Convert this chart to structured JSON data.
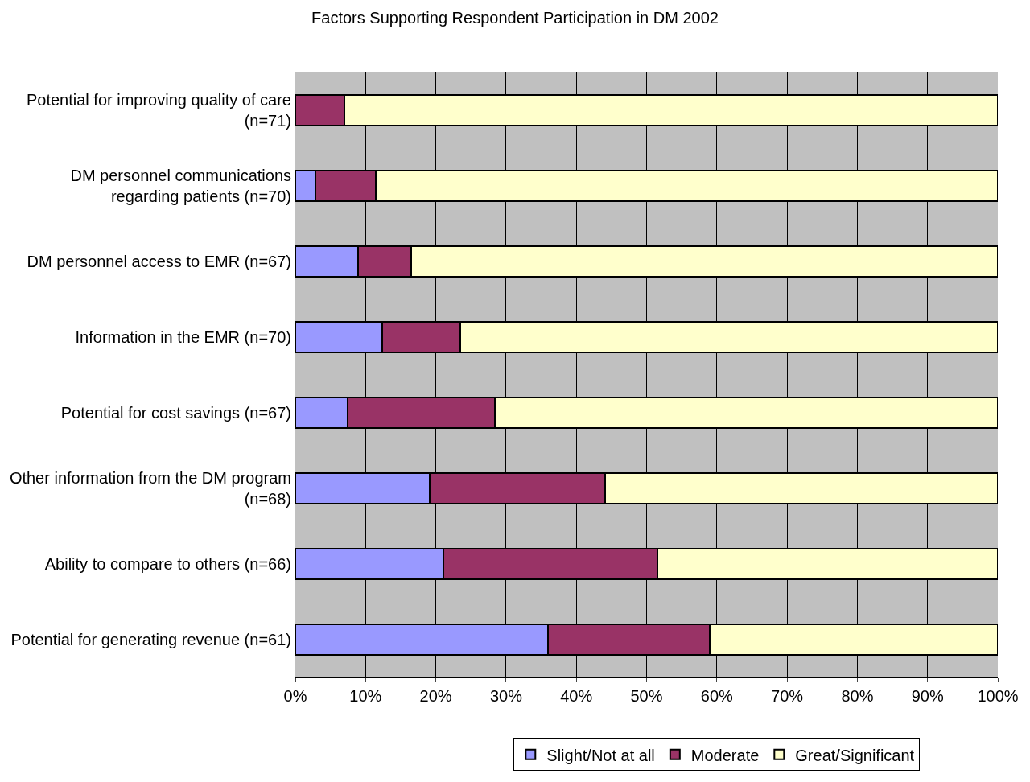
{
  "chart_data": {
    "type": "bar",
    "orientation": "horizontal",
    "stacked": true,
    "title": "Factors Supporting Respondent Participation in DM 2002",
    "categories": [
      "Potential for improving quality of care\n(n=71)",
      "DM personnel communications\nregarding patients (n=70)",
      "DM personnel access to EMR (n=67)",
      "Information in the EMR (n=70)",
      "Potential for cost savings (n=67)",
      "Other information from the DM program\n(n=68)",
      "Ability to compare to others (n=66)",
      "Potential for generating revenue (n=61)"
    ],
    "series": [
      {
        "name": "Slight/Not at all",
        "color": "#9999ff",
        "values": [
          0,
          2.9,
          8.9,
          12.4,
          7.5,
          19.1,
          21.1,
          36.0
        ]
      },
      {
        "name": "Moderate",
        "color": "#993366",
        "values": [
          7.0,
          8.6,
          7.6,
          11.1,
          20.9,
          25.0,
          30.4,
          23.0
        ]
      },
      {
        "name": "Great/Significant",
        "color": "#ffffcc",
        "values": [
          93.0,
          88.5,
          83.5,
          76.5,
          71.6,
          55.9,
          48.5,
          41.0
        ]
      }
    ],
    "xlim": [
      0,
      100
    ],
    "xticks": [
      {
        "value": 0,
        "label": "0%"
      },
      {
        "value": 10,
        "label": "10%"
      },
      {
        "value": 20,
        "label": "20%"
      },
      {
        "value": 30,
        "label": "30%"
      },
      {
        "value": 40,
        "label": "40%"
      },
      {
        "value": 50,
        "label": "50%"
      },
      {
        "value": 60,
        "label": "60%"
      },
      {
        "value": 70,
        "label": "70%"
      },
      {
        "value": 80,
        "label": "80%"
      },
      {
        "value": 90,
        "label": "90%"
      },
      {
        "value": 100,
        "label": "100%"
      }
    ],
    "grid": "x",
    "legend": "bottom"
  }
}
